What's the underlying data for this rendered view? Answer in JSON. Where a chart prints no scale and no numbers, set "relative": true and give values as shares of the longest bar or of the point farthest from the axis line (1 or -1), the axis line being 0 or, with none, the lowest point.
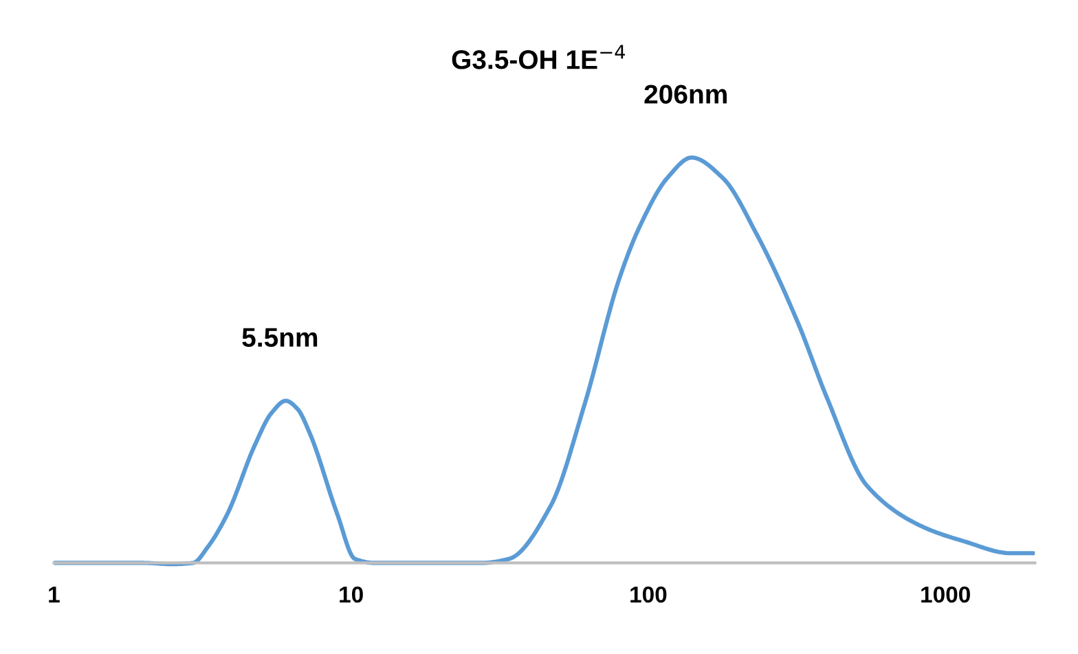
{
  "chart_data": {
    "type": "line",
    "title": "G3.5-OH 1E$^{−4}$",
    "relative": true,
    "log": "x",
    "xlim": [
      1,
      2000
    ],
    "xticks": [
      1,
      10,
      100,
      1000
    ],
    "grid": false,
    "legend": false,
    "marker": "none",
    "line_style": "solid",
    "annotations": [
      "5.5nm",
      "206nm"
    ],
    "series": [
      {
        "color": "#5b9bd5",
        "x": [
          1,
          2,
          2.5,
          2.94,
          3.3,
          3.83,
          4.74,
          5.4,
          6.03,
          6.6,
          7.26,
          8.99,
          10.3,
          12,
          20,
          27.5,
          34,
          46.9,
          61,
          79.8,
          93.6,
          116,
          140,
          178,
          232,
          320,
          398,
          545,
          834,
          1148,
          1660,
          1978
        ],
        "values": [
          0,
          0,
          -0.003,
          0,
          0.04,
          0.12,
          0.29,
          0.37,
          0.4,
          0.38,
          0.32,
          0.12,
          0.01,
          0,
          0,
          0,
          0.01,
          0.14,
          0.39,
          0.7,
          0.83,
          0.95,
          1,
          0.95,
          0.81,
          0.59,
          0.41,
          0.19,
          0.09,
          0.054,
          0.024,
          0.024
        ]
      }
    ]
  }
}
